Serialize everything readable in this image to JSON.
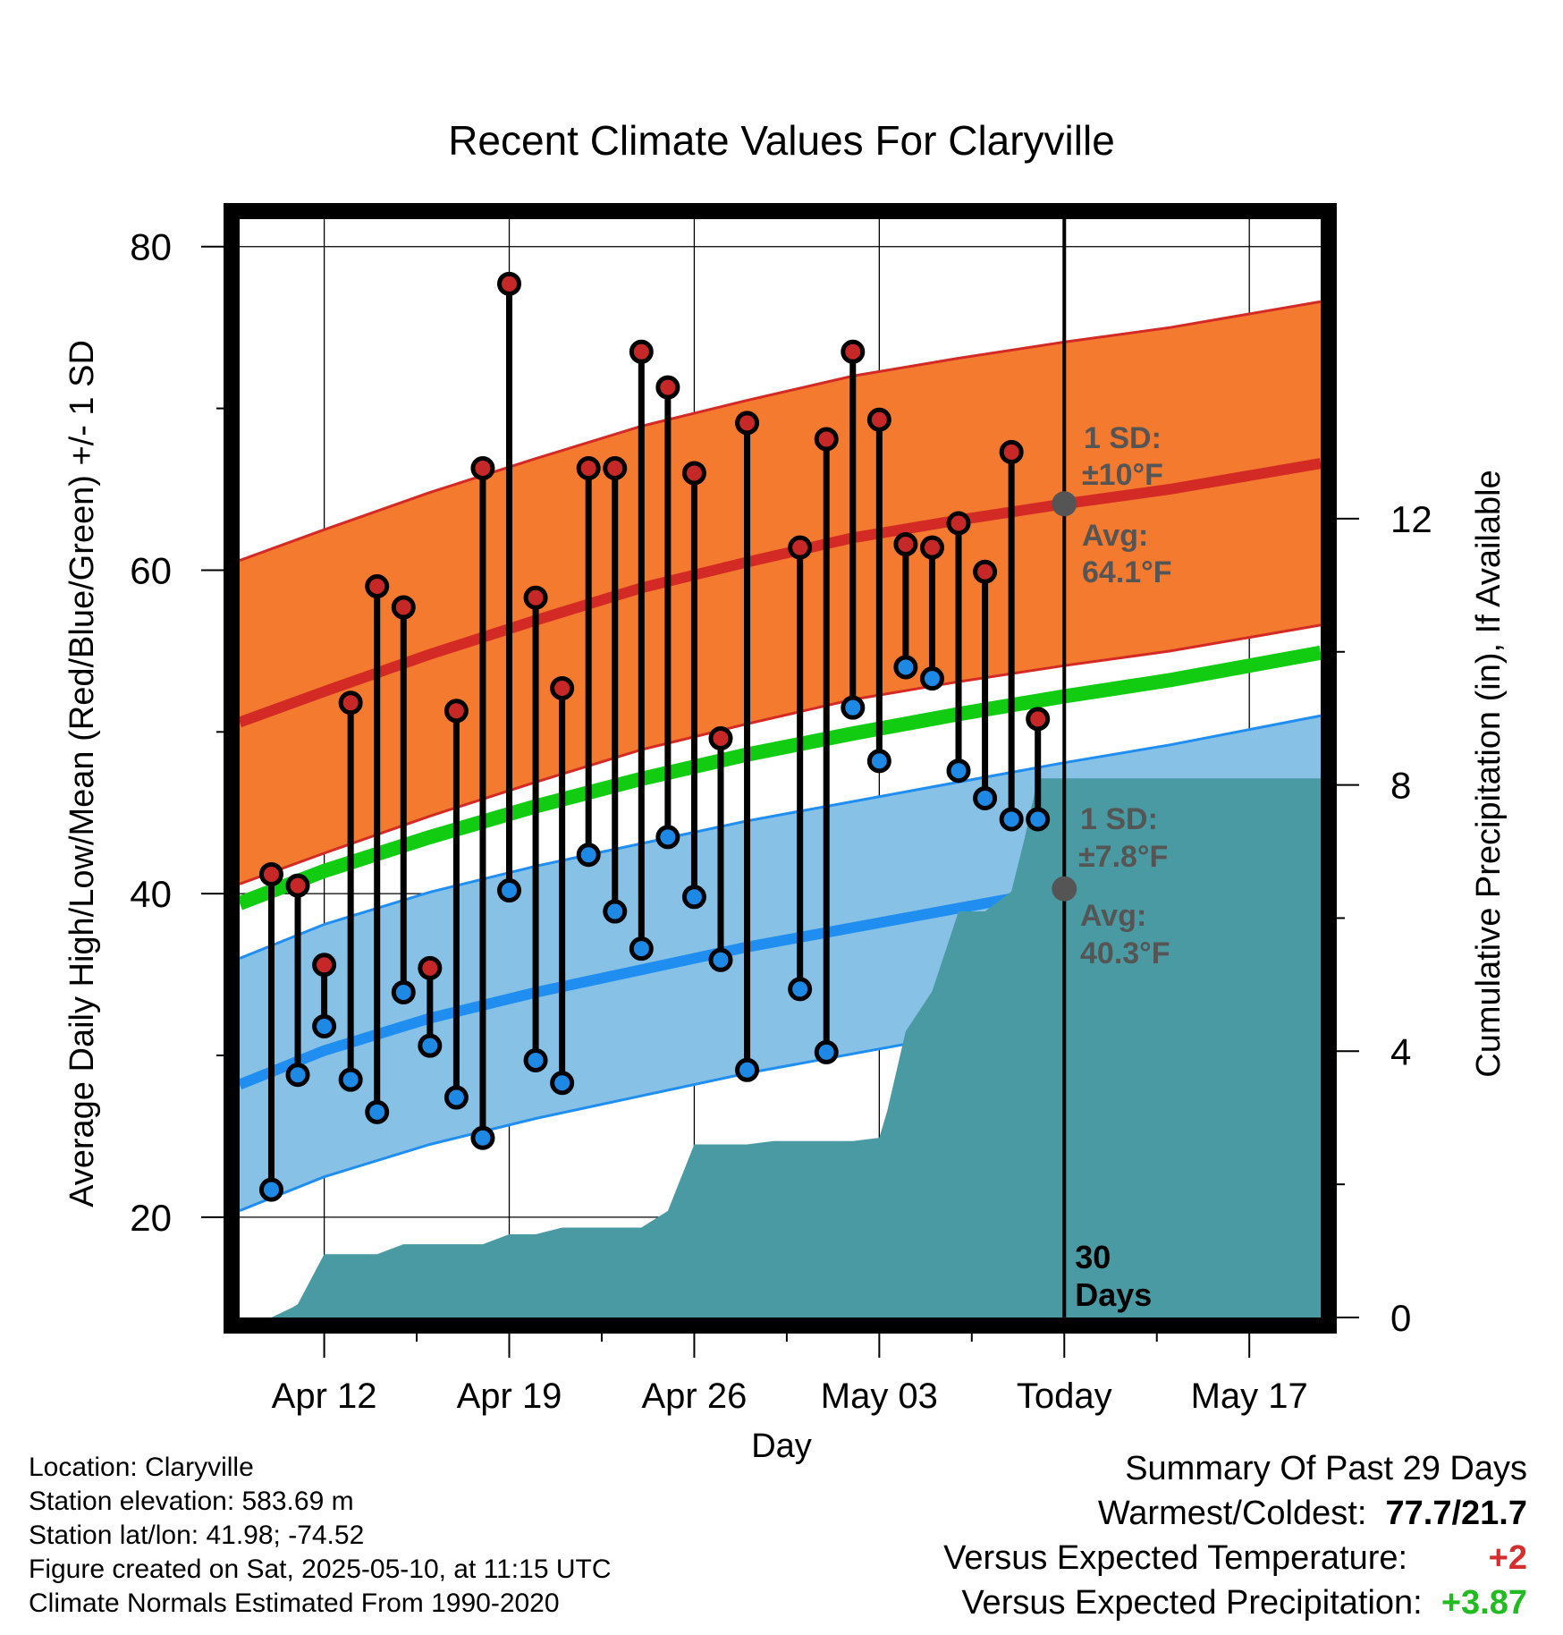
{
  "colors": {
    "high_band": "#f37a2e",
    "high_avg_line": "#d42a25",
    "low_band": "#87c1e6",
    "low_avg_line": "#1f8ef0",
    "mean_line": "#11cc11",
    "precip_fill": "#4a9aa3",
    "high_marker": "#c62828",
    "low_marker": "#1e88e5",
    "positive": "#22bb22",
    "negative": "#d32f2f"
  },
  "chart_data": {
    "type": "line",
    "title": "Recent Climate Values For Claryville",
    "xlabel": "Day",
    "ylabel": "Average Daily High/Low/Mean (Red/Blue/Green) +/- 1 SD",
    "y2label": "Cumulative Precipitation (in), If Available",
    "ylim": [
      13.8,
      81.7
    ],
    "y2lim": [
      0,
      16.5
    ],
    "yticks": [
      20,
      40,
      60,
      80
    ],
    "y2ticks": [
      0,
      4,
      8,
      12
    ],
    "x_tick_labels": [
      "Apr 12",
      "Apr 19",
      "Apr 26",
      "May 03",
      "Today",
      "May 17"
    ],
    "x_tick_days": [
      12,
      19,
      26,
      33,
      40,
      47
    ],
    "x_range_days": [
      8.8,
      49.7
    ],
    "today_day": 40,
    "today_label": "30 Days",
    "days": [
      10,
      11,
      12,
      13,
      14,
      15,
      16,
      17,
      18,
      19,
      20,
      21,
      22,
      23,
      24,
      25,
      26,
      27,
      28,
      30,
      31,
      32,
      33,
      34,
      35,
      36,
      37,
      38,
      39
    ],
    "daily_high": [
      41.2,
      40.5,
      35.6,
      51.8,
      59.0,
      57.7,
      35.4,
      51.3,
      66.3,
      77.7,
      58.3,
      52.7,
      66.3,
      66.3,
      73.5,
      71.3,
      66.0,
      49.6,
      69.1,
      61.4,
      68.1,
      73.5,
      69.3,
      61.6,
      61.4,
      62.9,
      59.9,
      67.3,
      50.8
    ],
    "daily_low": [
      21.7,
      28.8,
      31.8,
      28.5,
      26.5,
      33.9,
      30.6,
      27.4,
      24.9,
      40.2,
      29.7,
      28.3,
      42.4,
      38.9,
      36.6,
      43.5,
      39.8,
      35.9,
      29.1,
      34.1,
      30.2,
      51.5,
      48.2,
      54.0,
      53.3,
      47.6,
      45.9,
      44.6,
      44.6
    ],
    "normal_high": {
      "days": [
        8.8,
        12,
        16,
        20,
        24,
        28,
        32,
        36,
        40,
        44,
        49.7
      ],
      "mean": [
        50.6,
        52.5,
        54.8,
        56.9,
        58.9,
        60.5,
        62.0,
        63.1,
        64.1,
        65.0,
        66.6
      ],
      "sd": 10
    },
    "normal_low": {
      "days": [
        8.8,
        12,
        16,
        20,
        24,
        28,
        32,
        36,
        40,
        44,
        49.7
      ],
      "mean": [
        28.2,
        30.3,
        32.3,
        33.9,
        35.3,
        36.7,
        37.9,
        39.1,
        40.3,
        41.4,
        43.2
      ],
      "sd": 7.8
    },
    "normal_mean": {
      "days": [
        8.8,
        12,
        16,
        20,
        24,
        28,
        32,
        36,
        40,
        44,
        49.7
      ],
      "values": [
        39.4,
        41.4,
        43.5,
        45.4,
        47.1,
        48.6,
        49.9,
        51.1,
        52.2,
        53.2,
        54.9
      ]
    },
    "precip_cumulative": {
      "days": [
        8.8,
        10,
        10.8,
        11,
        12,
        14,
        15,
        18,
        19,
        20,
        21,
        24,
        25,
        26,
        27,
        28,
        29,
        30,
        31,
        32,
        33,
        33.3,
        34,
        35,
        36,
        37,
        38,
        38.5,
        39,
        40,
        41,
        45,
        49.7
      ],
      "values": [
        0,
        0,
        0.15,
        0.2,
        0.95,
        0.95,
        1.1,
        1.1,
        1.25,
        1.25,
        1.35,
        1.35,
        1.6,
        2.6,
        2.6,
        2.6,
        2.65,
        2.65,
        2.65,
        2.65,
        2.7,
        3.1,
        4.3,
        4.9,
        6.1,
        6.1,
        6.4,
        7.2,
        8.1,
        8.1,
        8.1,
        8.1,
        8.1
      ]
    },
    "annotations": {
      "high_sd_label": "1 SD:",
      "high_sd_value": "±10°F",
      "high_avg_label": "Avg:",
      "high_avg_value": "64.1°F",
      "low_sd_label": "1 SD:",
      "low_sd_value": "±7.8°F",
      "low_avg_label": "Avg:",
      "low_avg_value": "40.3°F",
      "high_avg_num": 64.1,
      "low_avg_num": 40.3
    }
  },
  "info": {
    "location": "Location: Claryville",
    "elevation": "Station elevation: 583.69 m",
    "latlon": "Station lat/lon: 41.98; -74.52",
    "created": "Figure created on Sat, 2025-05-10, at 11:15 UTC",
    "normals": "Climate Normals Estimated From 1990-2020"
  },
  "summary": {
    "title": "Summary Of Past 29 Days",
    "warm_cold_label": "Warmest/Coldest:",
    "warm_cold_value": "77.7/21.7",
    "temp_label": "Versus Expected Temperature:",
    "temp_value": "+2",
    "precip_label": "Versus Expected Precipitation:",
    "precip_value": "+3.87"
  }
}
